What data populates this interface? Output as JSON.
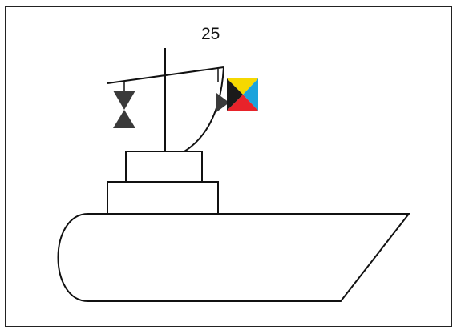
{
  "figure_number": "25",
  "colors": {
    "line": "#111111",
    "shape_fill": "#3a3a3a",
    "flag_yellow": "#f5d800",
    "flag_blue": "#1ba3dc",
    "flag_red": "#e8232a",
    "flag_black": "#1a1a1a"
  }
}
